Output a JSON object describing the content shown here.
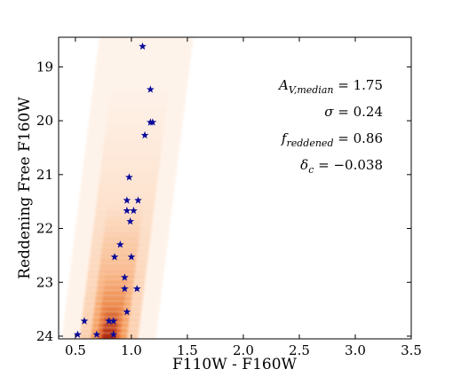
{
  "chart_data": {
    "type": "scatter",
    "xlabel": "F110W - F160W",
    "ylabel": "Reddening Free F160W",
    "xlim": [
      0.35,
      3.5
    ],
    "ylim": [
      24.05,
      18.45
    ],
    "y_inverted": true,
    "x_ticks": [
      "0.5",
      "1.0",
      "1.5",
      "2.0",
      "2.5",
      "3.0",
      "3.5"
    ],
    "y_ticks": [
      "19",
      "20",
      "21",
      "22",
      "23",
      "24"
    ],
    "star_color": "#0a0a9a",
    "density_colors": [
      "#fde9d8",
      "#fbc49c",
      "#f28b3f",
      "#d9480f",
      "#8a0a06"
    ],
    "points": [
      {
        "x": 1.1,
        "y": 18.62
      },
      {
        "x": 1.17,
        "y": 19.42
      },
      {
        "x": 1.17,
        "y": 20.03
      },
      {
        "x": 1.19,
        "y": 20.03
      },
      {
        "x": 1.12,
        "y": 20.27
      },
      {
        "x": 0.98,
        "y": 21.05
      },
      {
        "x": 0.96,
        "y": 21.48
      },
      {
        "x": 1.06,
        "y": 21.48
      },
      {
        "x": 0.96,
        "y": 21.67
      },
      {
        "x": 1.02,
        "y": 21.67
      },
      {
        "x": 0.99,
        "y": 21.87
      },
      {
        "x": 0.9,
        "y": 22.3
      },
      {
        "x": 1.0,
        "y": 22.53
      },
      {
        "x": 0.85,
        "y": 22.53
      },
      {
        "x": 0.94,
        "y": 22.91
      },
      {
        "x": 0.94,
        "y": 23.12
      },
      {
        "x": 1.05,
        "y": 23.12
      },
      {
        "x": 0.96,
        "y": 23.55
      },
      {
        "x": 0.58,
        "y": 23.72
      },
      {
        "x": 0.8,
        "y": 23.72
      },
      {
        "x": 0.84,
        "y": 23.72
      },
      {
        "x": 0.52,
        "y": 23.97
      },
      {
        "x": 0.69,
        "y": 23.97
      },
      {
        "x": 0.84,
        "y": 23.97
      }
    ],
    "annotations": [
      {
        "symbol": "A",
        "subscript": "V,median",
        "value": " = 1.75"
      },
      {
        "symbol": "σ",
        "subscript": "",
        "value": " = 0.24"
      },
      {
        "symbol": "f",
        "subscript": "reddened",
        "value": " = 0.86"
      },
      {
        "symbol": "δ",
        "subscript": "c",
        "value": " = −0.038"
      }
    ]
  }
}
